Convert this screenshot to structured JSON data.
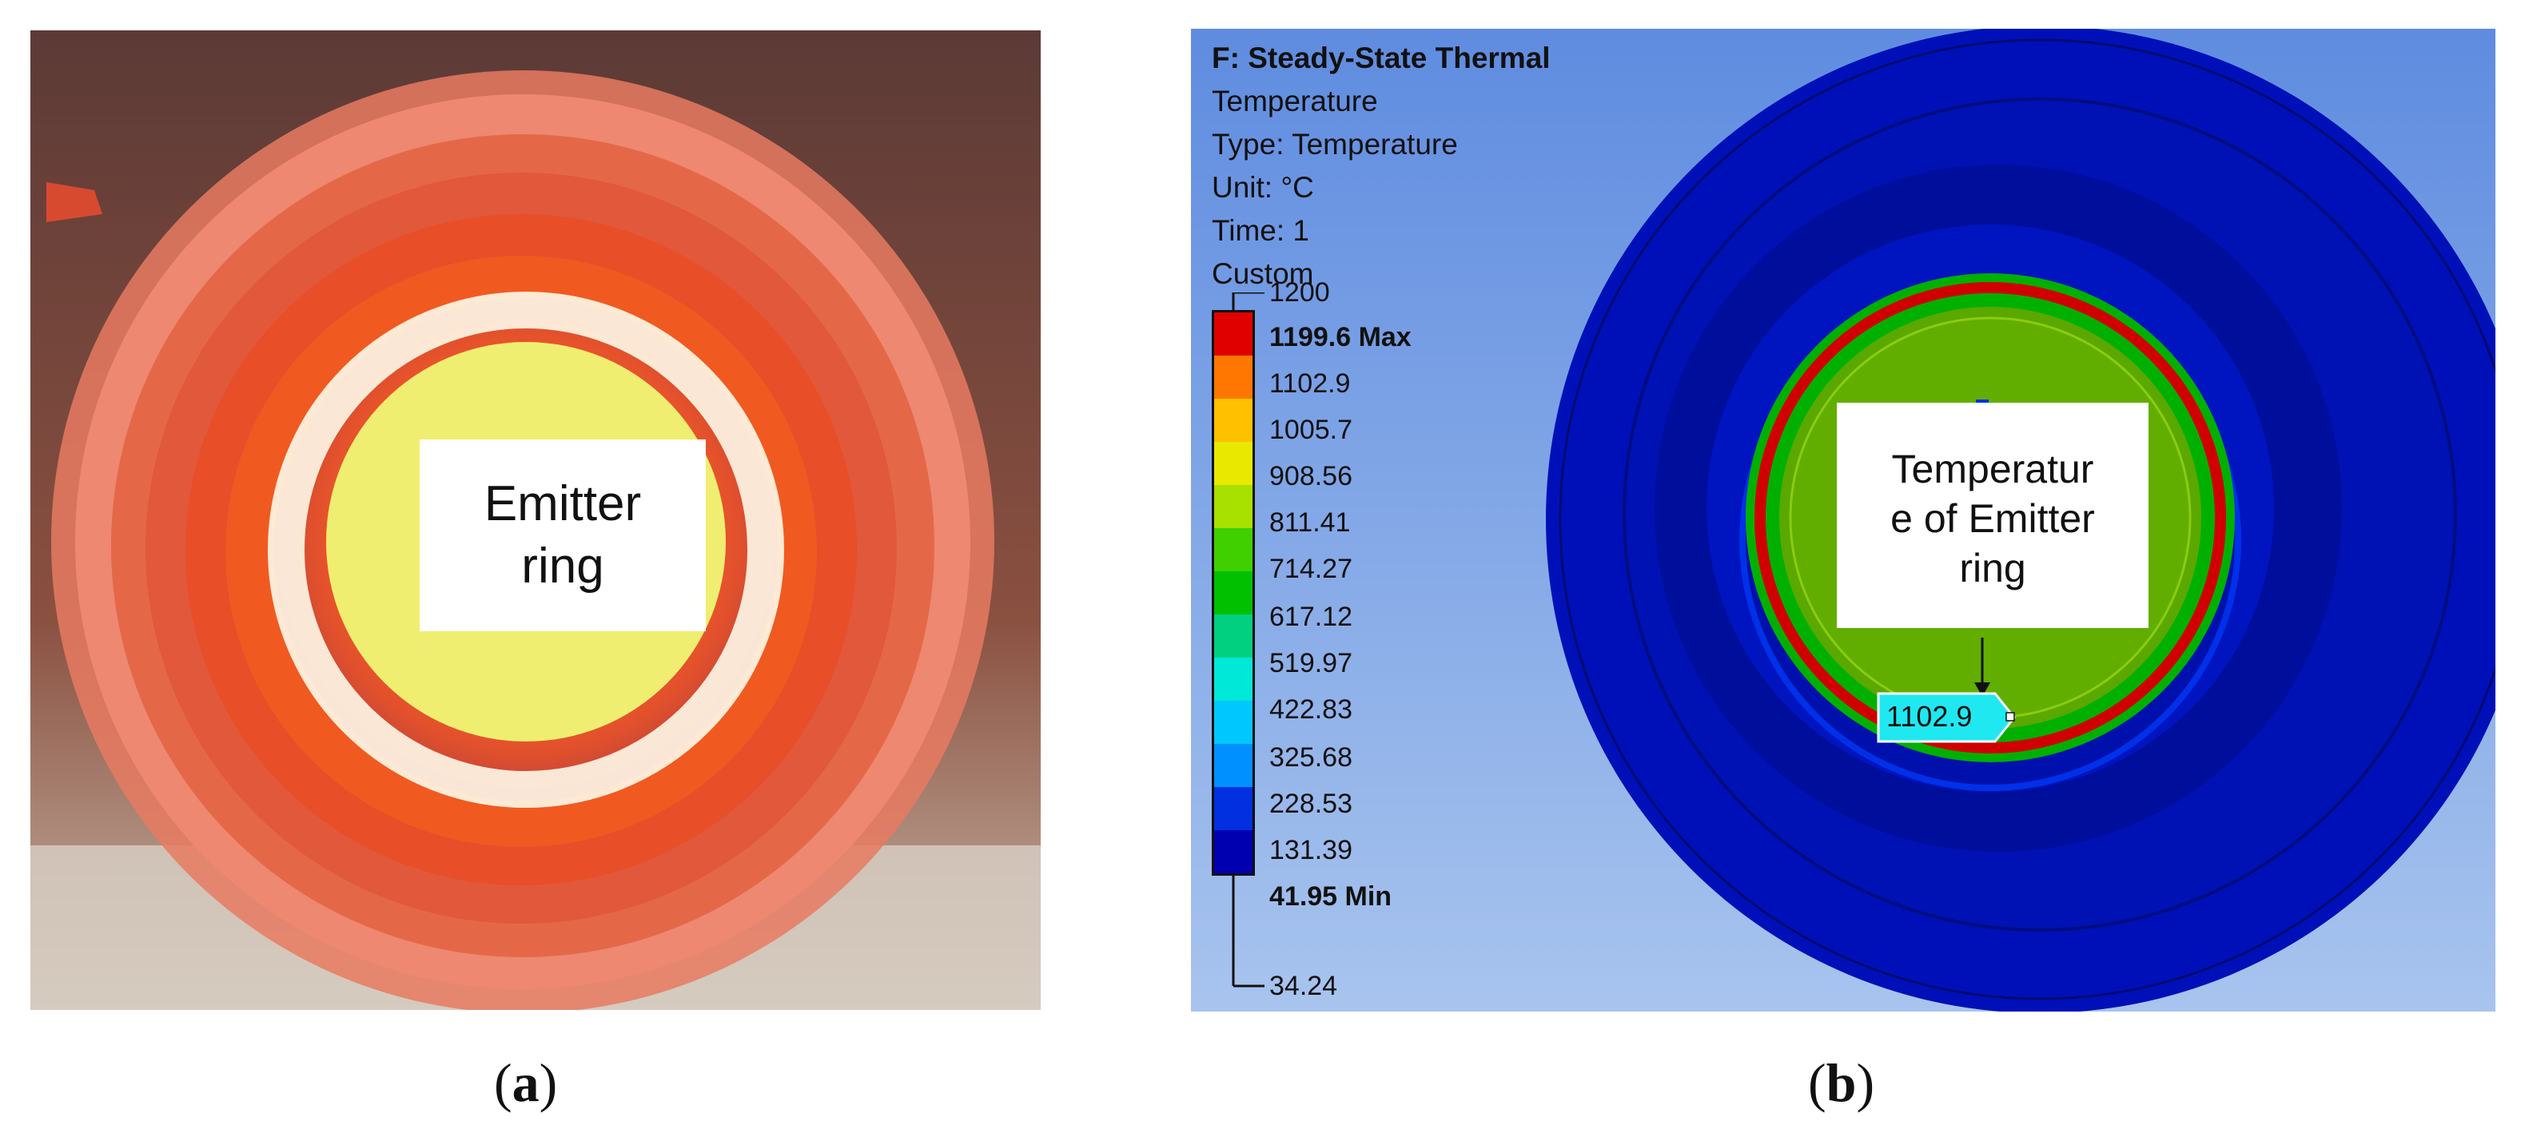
{
  "panel_a": {
    "label": "Emitter\nring",
    "caption_letter": "a"
  },
  "panel_b": {
    "header": {
      "title": "F: Steady-State Thermal",
      "line1": "Temperature",
      "line2": "Type: Temperature",
      "line3": "Unit: °C",
      "line4": "Time: 1",
      "line5": "Custom"
    },
    "legend": {
      "top": "1200",
      "max": "1199.6 Max",
      "levels": [
        "1102.9",
        "1005.7",
        "908.56",
        "811.41",
        "714.27",
        "617.12",
        "519.97",
        "422.83",
        "325.68",
        "228.53",
        "131.39"
      ],
      "min": "41.95 Min",
      "bottom": "34.24",
      "colors": [
        "#e00000",
        "#ff7700",
        "#ffc000",
        "#e8e800",
        "#a8e000",
        "#40d000",
        "#00c000",
        "#00d080",
        "#00e8d8",
        "#00c8ff",
        "#0090ff",
        "#0030e0",
        "#0000b0"
      ]
    },
    "annotation": "Temperatur\ne of Emitter\nring",
    "probe_value": "1102.9",
    "caption_letter": "b"
  },
  "colors": {
    "model_blue": "#0010b8",
    "emitter_green": "#5aa800",
    "ring_red": "#d00000",
    "ring_green": "#00b000",
    "background_blue": "#6f96e2"
  }
}
